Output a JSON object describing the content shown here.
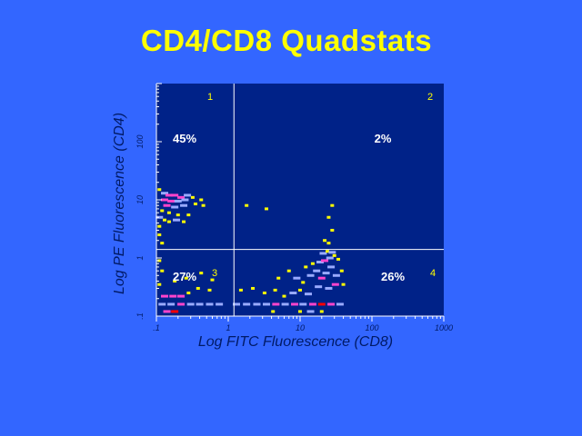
{
  "slide": {
    "title": "CD4/CD8 Quadstats"
  },
  "chart_data": {
    "type": "scatter",
    "title": "CD4/CD8 Quadstats",
    "xlabel": "Log FITC Fluorescence (CD8)",
    "ylabel": "Log PE Fluorescence (CD4)",
    "x_scale": "log",
    "y_scale": "log",
    "xlim": [
      0.1,
      1000
    ],
    "ylim": [
      0.1,
      1000
    ],
    "x_ticks": [
      ".1",
      "1",
      "10",
      "100",
      "1000"
    ],
    "y_ticks": [
      ".1",
      "1",
      "10",
      "100"
    ],
    "gates": {
      "x": 1.2,
      "y": 1.4
    },
    "quadrants": [
      {
        "number": "1",
        "percent": "45%",
        "position": "upper-left"
      },
      {
        "number": "2",
        "percent": "2%",
        "position": "upper-right"
      },
      {
        "number": "3",
        "percent": "27%",
        "position": "lower-left"
      },
      {
        "number": "4",
        "percent": "26%",
        "position": "lower-right"
      }
    ],
    "density_colors": {
      "low": "#ffff00",
      "mid": "#99aaff",
      "high": "#ff44cc",
      "max": "#ff0000"
    },
    "points": [
      {
        "x": 0.11,
        "y": 15,
        "d": "low"
      },
      {
        "x": 0.13,
        "y": 13,
        "d": "mid"
      },
      {
        "x": 0.15,
        "y": 12,
        "d": "high"
      },
      {
        "x": 0.18,
        "y": 12,
        "d": "high"
      },
      {
        "x": 0.22,
        "y": 11,
        "d": "high"
      },
      {
        "x": 0.27,
        "y": 12,
        "d": "mid"
      },
      {
        "x": 0.13,
        "y": 10,
        "d": "high"
      },
      {
        "x": 0.16,
        "y": 9.5,
        "d": "high"
      },
      {
        "x": 0.2,
        "y": 9.5,
        "d": "mid"
      },
      {
        "x": 0.25,
        "y": 10,
        "d": "mid"
      },
      {
        "x": 0.32,
        "y": 11,
        "d": "low"
      },
      {
        "x": 0.42,
        "y": 10,
        "d": "low"
      },
      {
        "x": 0.14,
        "y": 8,
        "d": "high"
      },
      {
        "x": 0.18,
        "y": 7.5,
        "d": "mid"
      },
      {
        "x": 0.24,
        "y": 8,
        "d": "mid"
      },
      {
        "x": 0.35,
        "y": 8.5,
        "d": "low"
      },
      {
        "x": 0.45,
        "y": 8,
        "d": "low"
      },
      {
        "x": 0.12,
        "y": 6.5,
        "d": "low"
      },
      {
        "x": 0.15,
        "y": 6,
        "d": "low"
      },
      {
        "x": 0.2,
        "y": 5.5,
        "d": "low"
      },
      {
        "x": 0.28,
        "y": 5.5,
        "d": "low"
      },
      {
        "x": 0.11,
        "y": 5,
        "d": "mid"
      },
      {
        "x": 0.13,
        "y": 4.5,
        "d": "low"
      },
      {
        "x": 0.15,
        "y": 4.2,
        "d": "low"
      },
      {
        "x": 0.19,
        "y": 4.5,
        "d": "mid"
      },
      {
        "x": 0.24,
        "y": 4.2,
        "d": "low"
      },
      {
        "x": 0.11,
        "y": 3.5,
        "d": "low"
      },
      {
        "x": 0.11,
        "y": 2.5,
        "d": "low"
      },
      {
        "x": 0.12,
        "y": 1.8,
        "d": "low"
      },
      {
        "x": 1.8,
        "y": 8,
        "d": "low"
      },
      {
        "x": 3.4,
        "y": 7,
        "d": "low"
      },
      {
        "x": 28,
        "y": 8,
        "d": "low"
      },
      {
        "x": 25,
        "y": 5,
        "d": "low"
      },
      {
        "x": 28,
        "y": 3,
        "d": "low"
      },
      {
        "x": 22,
        "y": 2,
        "d": "low"
      },
      {
        "x": 25,
        "y": 1.8,
        "d": "low"
      },
      {
        "x": 0.11,
        "y": 0.9,
        "d": "low"
      },
      {
        "x": 0.12,
        "y": 0.6,
        "d": "low"
      },
      {
        "x": 0.11,
        "y": 0.35,
        "d": "low"
      },
      {
        "x": 0.13,
        "y": 0.22,
        "d": "high"
      },
      {
        "x": 0.17,
        "y": 0.22,
        "d": "high"
      },
      {
        "x": 0.22,
        "y": 0.22,
        "d": "high"
      },
      {
        "x": 0.12,
        "y": 0.16,
        "d": "mid"
      },
      {
        "x": 0.16,
        "y": 0.16,
        "d": "mid"
      },
      {
        "x": 0.22,
        "y": 0.16,
        "d": "high"
      },
      {
        "x": 0.3,
        "y": 0.16,
        "d": "mid"
      },
      {
        "x": 0.4,
        "y": 0.16,
        "d": "mid"
      },
      {
        "x": 0.55,
        "y": 0.16,
        "d": "mid"
      },
      {
        "x": 0.75,
        "y": 0.16,
        "d": "mid"
      },
      {
        "x": 0.14,
        "y": 0.12,
        "d": "high"
      },
      {
        "x": 0.18,
        "y": 0.12,
        "d": "max"
      },
      {
        "x": 0.28,
        "y": 0.25,
        "d": "low"
      },
      {
        "x": 0.38,
        "y": 0.3,
        "d": "low"
      },
      {
        "x": 0.55,
        "y": 0.28,
        "d": "low"
      },
      {
        "x": 0.18,
        "y": 0.4,
        "d": "low"
      },
      {
        "x": 0.26,
        "y": 0.45,
        "d": "low"
      },
      {
        "x": 0.42,
        "y": 0.55,
        "d": "low"
      },
      {
        "x": 0.6,
        "y": 0.42,
        "d": "low"
      },
      {
        "x": 1.5,
        "y": 0.28,
        "d": "low"
      },
      {
        "x": 2.2,
        "y": 0.3,
        "d": "low"
      },
      {
        "x": 3.2,
        "y": 0.25,
        "d": "low"
      },
      {
        "x": 4.5,
        "y": 0.28,
        "d": "low"
      },
      {
        "x": 6,
        "y": 0.22,
        "d": "low"
      },
      {
        "x": 8,
        "y": 0.25,
        "d": "mid"
      },
      {
        "x": 10,
        "y": 0.28,
        "d": "low"
      },
      {
        "x": 13,
        "y": 0.24,
        "d": "mid"
      },
      {
        "x": 1.3,
        "y": 0.16,
        "d": "mid"
      },
      {
        "x": 1.8,
        "y": 0.16,
        "d": "mid"
      },
      {
        "x": 2.5,
        "y": 0.16,
        "d": "mid"
      },
      {
        "x": 3.4,
        "y": 0.16,
        "d": "mid"
      },
      {
        "x": 4.6,
        "y": 0.16,
        "d": "high"
      },
      {
        "x": 6.2,
        "y": 0.16,
        "d": "mid"
      },
      {
        "x": 8.4,
        "y": 0.16,
        "d": "high"
      },
      {
        "x": 11,
        "y": 0.16,
        "d": "mid"
      },
      {
        "x": 15,
        "y": 0.16,
        "d": "high"
      },
      {
        "x": 20,
        "y": 0.16,
        "d": "max"
      },
      {
        "x": 27,
        "y": 0.16,
        "d": "high"
      },
      {
        "x": 36,
        "y": 0.16,
        "d": "mid"
      },
      {
        "x": 20,
        "y": 0.12,
        "d": "low"
      },
      {
        "x": 14,
        "y": 0.12,
        "d": "mid"
      },
      {
        "x": 10,
        "y": 0.12,
        "d": "low"
      },
      {
        "x": 4.2,
        "y": 0.12,
        "d": "low"
      },
      {
        "x": 9,
        "y": 0.45,
        "d": "mid"
      },
      {
        "x": 11,
        "y": 0.38,
        "d": "low"
      },
      {
        "x": 14,
        "y": 0.5,
        "d": "mid"
      },
      {
        "x": 17,
        "y": 0.6,
        "d": "mid"
      },
      {
        "x": 20,
        "y": 0.45,
        "d": "high"
      },
      {
        "x": 23,
        "y": 0.55,
        "d": "mid"
      },
      {
        "x": 27,
        "y": 0.7,
        "d": "mid"
      },
      {
        "x": 32,
        "y": 0.5,
        "d": "mid"
      },
      {
        "x": 38,
        "y": 0.6,
        "d": "low"
      },
      {
        "x": 15,
        "y": 0.8,
        "d": "low"
      },
      {
        "x": 19,
        "y": 0.85,
        "d": "mid"
      },
      {
        "x": 22,
        "y": 0.9,
        "d": "high"
      },
      {
        "x": 26,
        "y": 1.0,
        "d": "mid"
      },
      {
        "x": 30,
        "y": 1.1,
        "d": "low"
      },
      {
        "x": 21,
        "y": 1.2,
        "d": "mid"
      },
      {
        "x": 24,
        "y": 1.3,
        "d": "low"
      },
      {
        "x": 28,
        "y": 1.25,
        "d": "mid"
      },
      {
        "x": 34,
        "y": 0.95,
        "d": "low"
      },
      {
        "x": 12,
        "y": 0.7,
        "d": "low"
      },
      {
        "x": 7,
        "y": 0.6,
        "d": "low"
      },
      {
        "x": 5,
        "y": 0.45,
        "d": "low"
      },
      {
        "x": 40,
        "y": 0.35,
        "d": "low"
      },
      {
        "x": 18,
        "y": 0.32,
        "d": "mid"
      },
      {
        "x": 25,
        "y": 0.3,
        "d": "mid"
      },
      {
        "x": 31,
        "y": 0.35,
        "d": "high"
      }
    ]
  }
}
